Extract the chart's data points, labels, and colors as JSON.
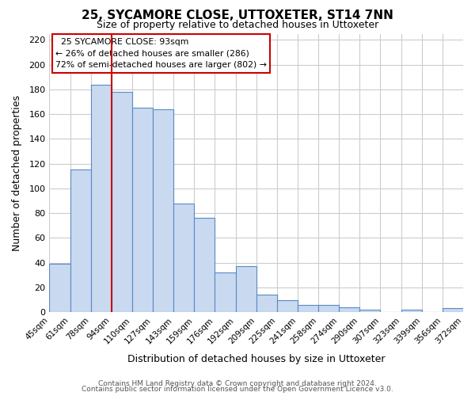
{
  "title": "25, SYCAMORE CLOSE, UTTOXETER, ST14 7NN",
  "subtitle": "Size of property relative to detached houses in Uttoxeter",
  "xlabel": "Distribution of detached houses by size in Uttoxeter",
  "ylabel": "Number of detached properties",
  "bar_labels": [
    "45sqm",
    "61sqm",
    "78sqm",
    "94sqm",
    "110sqm",
    "127sqm",
    "143sqm",
    "159sqm",
    "176sqm",
    "192sqm",
    "209sqm",
    "225sqm",
    "241sqm",
    "258sqm",
    "274sqm",
    "290sqm",
    "307sqm",
    "323sqm",
    "339sqm",
    "356sqm",
    "372sqm"
  ],
  "bar_values": [
    39,
    115,
    184,
    178,
    165,
    164,
    88,
    76,
    32,
    37,
    14,
    10,
    6,
    6,
    4,
    2,
    0,
    2,
    0,
    3
  ],
  "bar_color": "#c9d9f0",
  "bar_edge_color": "#5a8ac6",
  "vline_x": 3,
  "vline_color": "#cc0000",
  "ylim": [
    0,
    225
  ],
  "yticks": [
    0,
    20,
    40,
    60,
    80,
    100,
    120,
    140,
    160,
    180,
    200,
    220
  ],
  "annotation_title": "25 SYCAMORE CLOSE: 93sqm",
  "annotation_line1": "← 26% of detached houses are smaller (286)",
  "annotation_line2": "72% of semi-detached houses are larger (802) →",
  "footer_line1": "Contains HM Land Registry data © Crown copyright and database right 2024.",
  "footer_line2": "Contains public sector information licensed under the Open Government Licence v3.0.",
  "background_color": "#ffffff",
  "grid_color": "#cccccc"
}
